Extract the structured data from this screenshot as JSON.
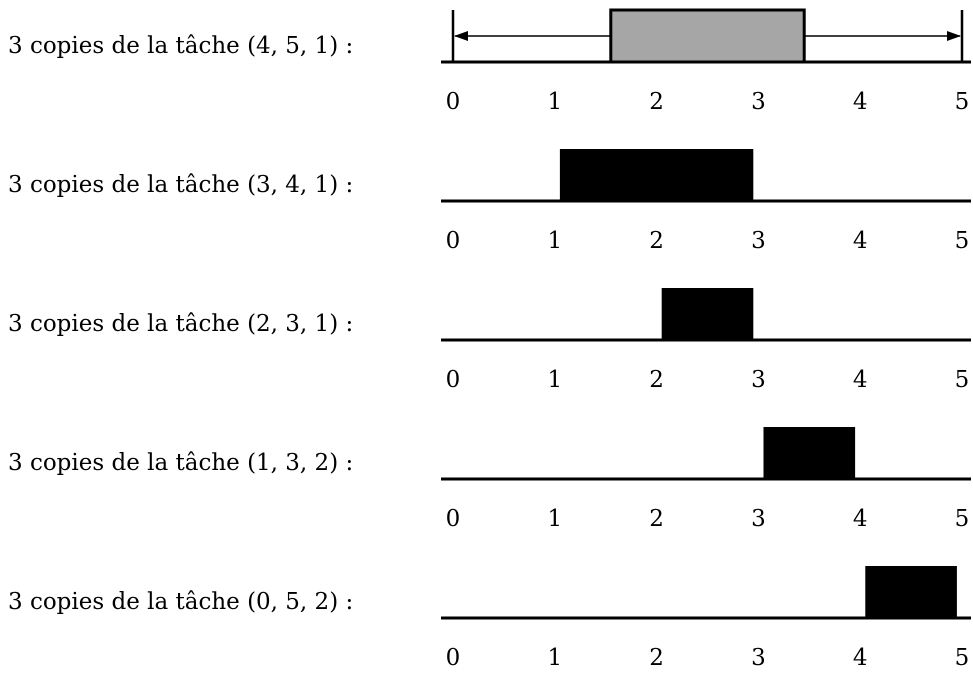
{
  "rows": [
    {
      "label": "3 copies de la tâche (4, 5, 1) :",
      "block": {
        "start": 1.55,
        "end": 3.45,
        "style": "gray"
      },
      "window": {
        "start": 0,
        "end": 5
      },
      "ticks": [
        "0",
        "1",
        "2",
        "3",
        "4",
        "5"
      ]
    },
    {
      "label": "3 copies de la tâche (3, 4, 1) :",
      "block": {
        "start": 1.05,
        "end": 2.95,
        "style": "black"
      },
      "ticks": [
        "0",
        "1",
        "2",
        "3",
        "4",
        "5"
      ]
    },
    {
      "label": "3 copies de la tâche (2, 3, 1) :",
      "block": {
        "start": 2.05,
        "end": 2.95,
        "style": "black"
      },
      "ticks": [
        "0",
        "1",
        "2",
        "3",
        "4",
        "5"
      ]
    },
    {
      "label": "3 copies de la tâche (1, 3, 2) :",
      "block": {
        "start": 3.05,
        "end": 3.95,
        "style": "black"
      },
      "ticks": [
        "0",
        "1",
        "2",
        "3",
        "4",
        "5"
      ]
    },
    {
      "label": "3 copies de la tâche (0, 5, 2) :",
      "block": {
        "start": 4.05,
        "end": 4.95,
        "style": "black"
      },
      "ticks": [
        "0",
        "1",
        "2",
        "3",
        "4",
        "5"
      ]
    }
  ],
  "axis_range": [
    0,
    5
  ],
  "colors": {
    "gray_block": "#a6a6a6",
    "black_block": "#000000",
    "line": "#000000"
  }
}
